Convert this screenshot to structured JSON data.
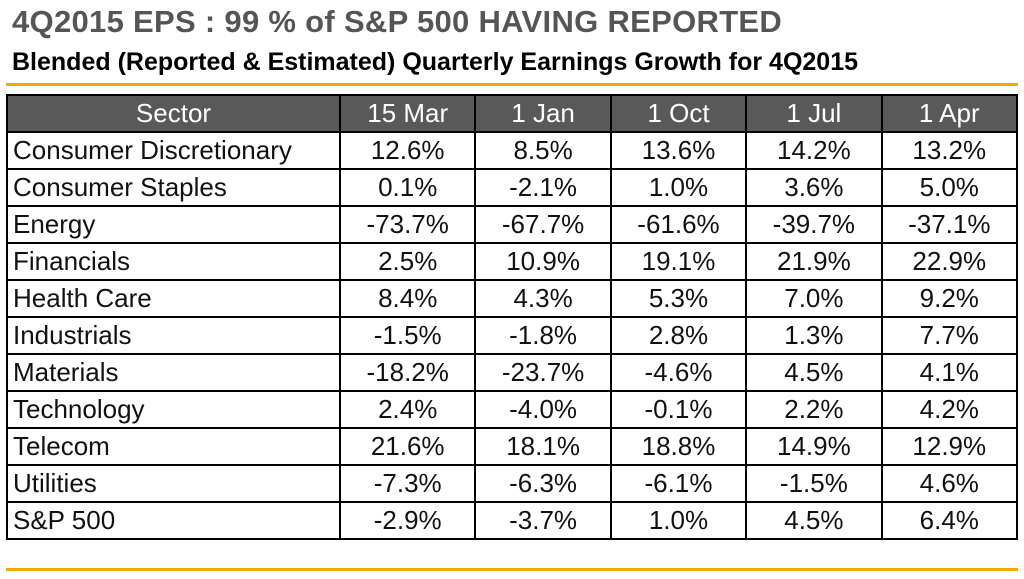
{
  "title": "4Q2015 EPS : 99 % of S&P 500 HAVING REPORTED",
  "subtitle": "Blended (Reported & Estimated) Quarterly Earnings Growth for 4Q2015",
  "colors": {
    "accent": "#f2a900",
    "header_bg": "#595959"
  },
  "table": {
    "headers": [
      "Sector",
      "15 Mar",
      "1 Jan",
      "1 Oct",
      "1 Jul",
      "1 Apr"
    ],
    "rows": [
      [
        "Consumer Discretionary",
        "12.6%",
        "8.5%",
        "13.6%",
        "14.2%",
        "13.2%"
      ],
      [
        "Consumer Staples",
        "0.1%",
        "-2.1%",
        "1.0%",
        "3.6%",
        "5.0%"
      ],
      [
        "Energy",
        "-73.7%",
        "-67.7%",
        "-61.6%",
        "-39.7%",
        "-37.1%"
      ],
      [
        "Financials",
        "2.5%",
        "10.9%",
        "19.1%",
        "21.9%",
        "22.9%"
      ],
      [
        "Health Care",
        "8.4%",
        "4.3%",
        "5.3%",
        "7.0%",
        "9.2%"
      ],
      [
        "Industrials",
        "-1.5%",
        "-1.8%",
        "2.8%",
        "1.3%",
        "7.7%"
      ],
      [
        "Materials",
        "-18.2%",
        "-23.7%",
        "-4.6%",
        "4.5%",
        "4.1%"
      ],
      [
        "Technology",
        "2.4%",
        "-4.0%",
        "-0.1%",
        "2.2%",
        "4.2%"
      ],
      [
        "Telecom",
        "21.6%",
        "18.1%",
        "18.8%",
        "14.9%",
        "12.9%"
      ],
      [
        "Utilities",
        "-7.3%",
        "-6.3%",
        "-6.1%",
        "-1.5%",
        "4.6%"
      ],
      [
        "S&P 500",
        "-2.9%",
        "-3.7%",
        "1.0%",
        "4.5%",
        "6.4%"
      ]
    ]
  }
}
